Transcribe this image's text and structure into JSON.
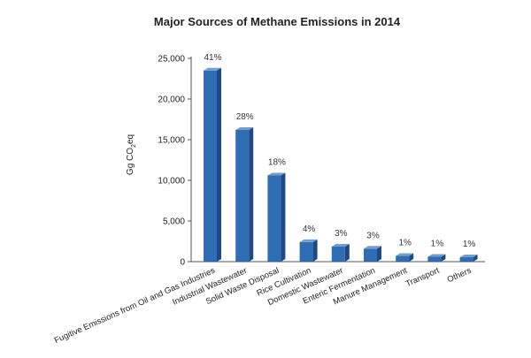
{
  "chart_data": {
    "type": "bar",
    "title": "Major Sources of Methane Emissions in 2014",
    "xlabel": "",
    "ylabel": "Gg CO₂eq",
    "ylabel_main": "Gg CO",
    "ylabel_sub": "2",
    "ylabel_tail": "eq",
    "ylim": [
      0,
      25000
    ],
    "yticks": [
      0,
      5000,
      10000,
      15000,
      20000,
      25000
    ],
    "ytick_labels": [
      "0",
      "5,000",
      "10,000",
      "15,000",
      "20,000",
      "25,000"
    ],
    "grid": false,
    "legend": "none",
    "categories": [
      "Fugitive Emissions from Oil and Gas Industries",
      "Industrial Wastewater",
      "Solid Waste Disposal",
      "Rice Cultivation",
      "Domestic Wastewater",
      "Enteric Fermentation",
      "Manure Management",
      "Transport",
      "Others"
    ],
    "values": [
      23500,
      16200,
      10600,
      2400,
      1850,
      1600,
      700,
      600,
      550
    ],
    "data_labels": [
      "41%",
      "28%",
      "18%",
      "4%",
      "3%",
      "3%",
      "1%",
      "1%",
      "1%"
    ],
    "colors": {
      "bar_front": "#2f6db5",
      "bar_top": "#6d9fd6",
      "bar_side": "#1d4a84",
      "axis": "#555555"
    }
  }
}
